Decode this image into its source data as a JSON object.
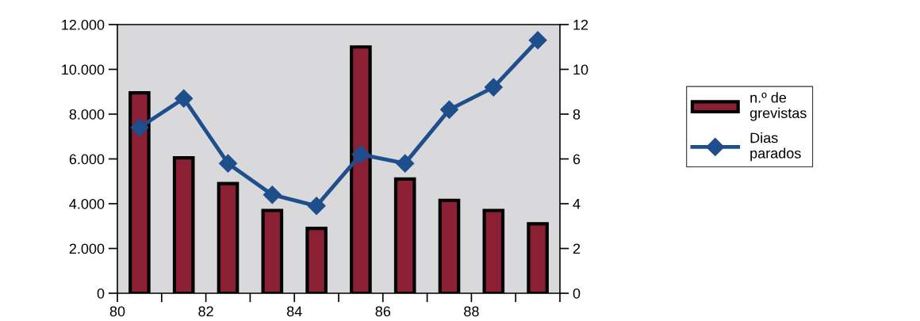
{
  "chart_data": {
    "type": "bar",
    "x": [
      80.5,
      81.5,
      82.5,
      83.5,
      84.5,
      85.5,
      86.5,
      87.5,
      88.5,
      89.5
    ],
    "series": [
      {
        "name": "n.º de\ngrevistas",
        "color": "#8b2035",
        "values": [
          8950,
          6050,
          4900,
          3700,
          2900,
          11000,
          5100,
          4150,
          3700,
          3100
        ]
      },
      {
        "name": "Dias\nparados",
        "type": "line",
        "axis": "y2",
        "color": "#1f4e8c",
        "marker": "diamond",
        "line_style": "solid",
        "values": [
          7.4,
          8.7,
          5.8,
          4.4,
          3.9,
          6.2,
          5.8,
          8.2,
          9.2,
          11.3
        ]
      }
    ],
    "xlim": [
      80,
      90
    ],
    "xticks": [
      80,
      {
        "value": 81,
        "label": null
      },
      82,
      {
        "value": 83,
        "label": null
      },
      84,
      {
        "value": 85,
        "label": null
      },
      86,
      {
        "value": 87,
        "label": null
      },
      88,
      {
        "value": 89,
        "label": null
      },
      {
        "value": 90,
        "label": null
      }
    ],
    "ylim": [
      0,
      12000
    ],
    "yticks": [
      0,
      {
        "value": 2000,
        "label": "2.000"
      },
      {
        "value": 4000,
        "label": "4.000"
      },
      {
        "value": 6000,
        "label": "6.000"
      },
      {
        "value": 8000,
        "label": "8.000"
      },
      {
        "value": 10000,
        "label": "10.000"
      },
      {
        "value": 12000,
        "label": "12.000"
      }
    ],
    "y2lim": [
      0,
      12
    ],
    "y2ticks": [
      0,
      2,
      4,
      6,
      8,
      10,
      12
    ],
    "grid": false,
    "legend": "right"
  }
}
